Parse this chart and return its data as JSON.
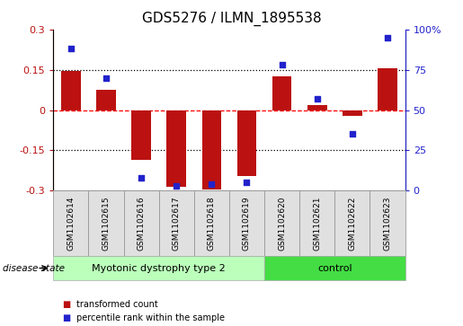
{
  "title": "GDS5276 / ILMN_1895538",
  "samples": [
    "GSM1102614",
    "GSM1102615",
    "GSM1102616",
    "GSM1102617",
    "GSM1102618",
    "GSM1102619",
    "GSM1102620",
    "GSM1102621",
    "GSM1102622",
    "GSM1102623"
  ],
  "bar_values": [
    0.145,
    0.075,
    -0.185,
    -0.285,
    -0.295,
    -0.245,
    0.125,
    0.02,
    -0.02,
    0.155
  ],
  "scatter_values": [
    88,
    70,
    8,
    3,
    4,
    5,
    78,
    57,
    35,
    95
  ],
  "ylim_left": [
    -0.3,
    0.3
  ],
  "ylim_right": [
    0,
    100
  ],
  "yticks_left": [
    -0.3,
    -0.15,
    0.0,
    0.15,
    0.3
  ],
  "yticks_right": [
    0,
    25,
    50,
    75,
    100
  ],
  "ytick_labels_left": [
    "-0.3",
    "-0.15",
    "0",
    "0.15",
    "0.3"
  ],
  "ytick_labels_right": [
    "0",
    "25",
    "50",
    "75",
    "100%"
  ],
  "hlines_dotted": [
    0.15,
    -0.15
  ],
  "hline_red_dashed": 0.0,
  "group1_label": "Myotonic dystrophy type 2",
  "group2_label": "control",
  "group1_count": 6,
  "group2_count": 4,
  "disease_state_label": "disease state",
  "bar_color": "#bb1111",
  "scatter_color": "#2222cc",
  "group1_bg": "#bbffbb",
  "group2_bg": "#44dd44",
  "legend_bar_label": "transformed count",
  "legend_scatter_label": "percentile rank within the sample",
  "sample_box_bg": "#e0e0e0",
  "sample_box_edge": "#999999",
  "title_fontsize": 11,
  "tick_fontsize": 8,
  "label_fontsize": 8
}
